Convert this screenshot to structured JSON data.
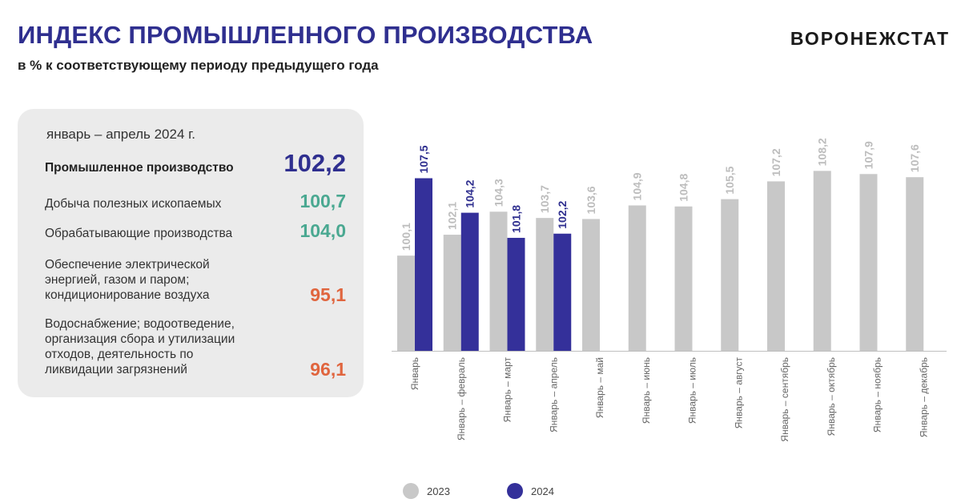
{
  "header": {
    "title": "ИНДЕКС ПРОМЫШЛЕННОГО ПРОИЗВОДСТВА",
    "subtitle": "в % к соответствующему периоду предыдущего  года",
    "brand": "ВОРОНЕЖСТАТ"
  },
  "summary": {
    "period": "январь – апрель 2024 г.",
    "rows": [
      {
        "label": "Промышленное производство",
        "value": "102,2"
      },
      {
        "label": "Добыча полезных ископаемых",
        "value": "100,7"
      },
      {
        "label": "Обрабатывающие производства",
        "value": "104,0"
      },
      {
        "label": "Обеспечение электрической энергией, газом и паром; кондиционирование воздуха",
        "value": "95,1"
      },
      {
        "label": "Водоснабжение; водоотведение, организация сбора и утилизации отходов, деятельность по ликвидации загрязнений",
        "value": "96,1"
      }
    ]
  },
  "chart_data": {
    "type": "bar",
    "categories": [
      "Январь",
      "Январь – февраль",
      "Январь – март",
      "Январь – апрель",
      "Январь – май",
      "Январь – июнь",
      "Январь – июль",
      "Январь – август",
      "Январь – сентябрь",
      "Январь – октябрь",
      "Январь – ноябрь",
      "Январь – декабрь"
    ],
    "series": [
      {
        "name": "2023",
        "color": "#c8c8c8",
        "label_color": "#bdbdbd",
        "values": [
          100.1,
          102.1,
          104.3,
          103.7,
          103.6,
          104.9,
          104.8,
          105.5,
          107.2,
          108.2,
          107.9,
          107.6
        ]
      },
      {
        "name": "2024",
        "color": "#34309a",
        "label_color": "#2f2f8f",
        "values": [
          107.5,
          104.2,
          101.8,
          102.2,
          null,
          null,
          null,
          null,
          null,
          null,
          null,
          null
        ]
      }
    ],
    "ylim": [
      91,
      110
    ],
    "legend": "bottom"
  }
}
